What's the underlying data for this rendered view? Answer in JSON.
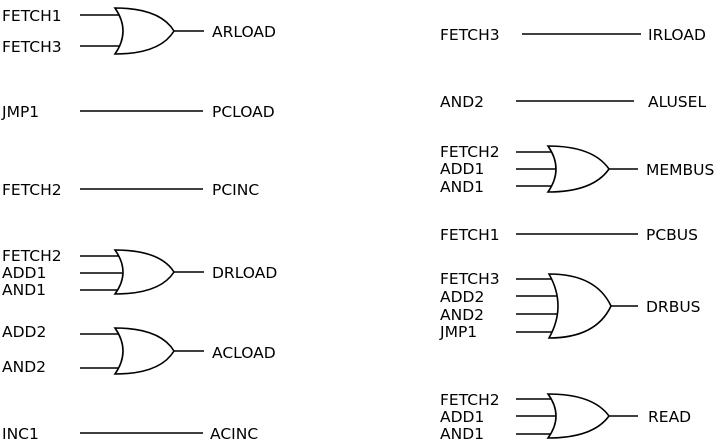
{
  "colors": {
    "stroke": "#000000",
    "background": "#ffffff"
  },
  "left": {
    "arload": {
      "inputs": [
        "FETCH1",
        "FETCH3"
      ],
      "output": "ARLOAD"
    },
    "pcload": {
      "input": "JMP1",
      "output": "PCLOAD"
    },
    "pcinc": {
      "input": "FETCH2",
      "output": "PCINC"
    },
    "drload": {
      "inputs": [
        "FETCH2",
        "ADD1",
        "AND1"
      ],
      "output": "DRLOAD"
    },
    "acload": {
      "inputs": [
        "ADD2",
        "AND2"
      ],
      "output": "ACLOAD"
    },
    "acinc": {
      "input": "INC1",
      "output": "ACINC"
    }
  },
  "right": {
    "irload": {
      "input": "FETCH3",
      "output": "IRLOAD"
    },
    "alusel": {
      "input": "AND2",
      "output": "ALUSEL"
    },
    "membus": {
      "inputs": [
        "FETCH2",
        "ADD1",
        "AND1"
      ],
      "output": "MEMBUS"
    },
    "pcbus": {
      "input": "FETCH1",
      "output": "PCBUS"
    },
    "drbus": {
      "inputs": [
        "FETCH3",
        "ADD2",
        "AND2",
        "JMP1"
      ],
      "output": "DRBUS"
    },
    "read": {
      "inputs": [
        "FETCH2",
        "ADD1",
        "AND1"
      ],
      "output": "READ"
    }
  }
}
